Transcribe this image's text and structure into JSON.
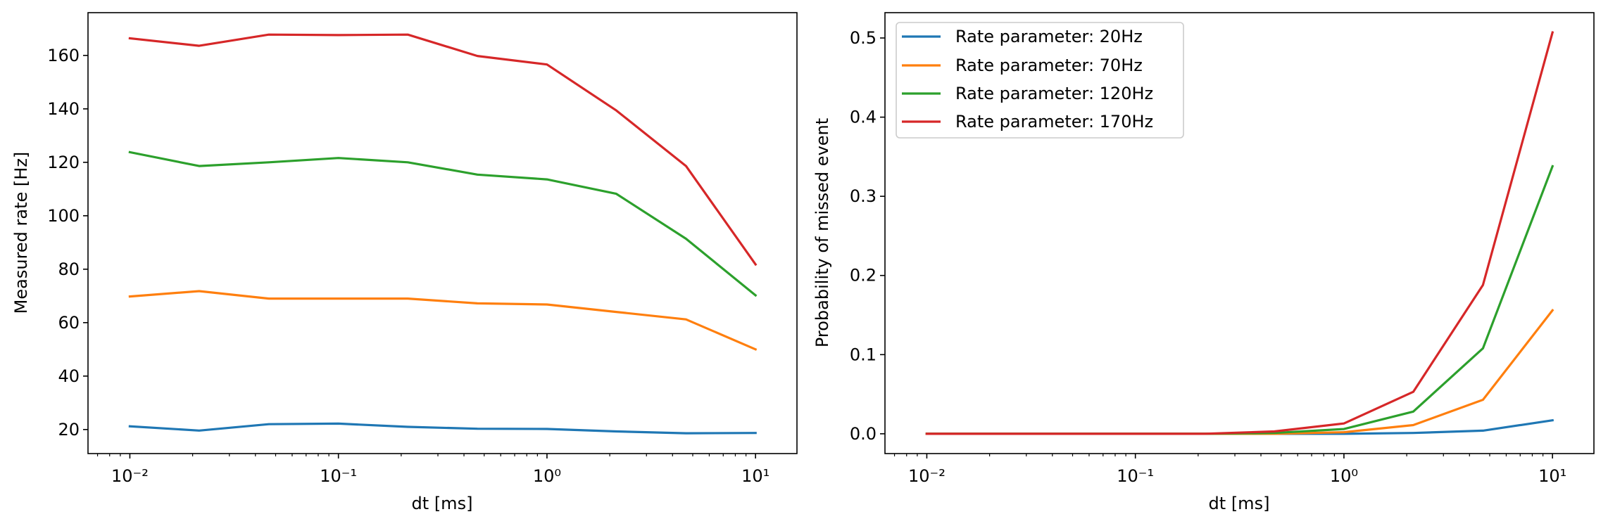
{
  "colors": {
    "series": [
      "#1f77b4",
      "#ff7f0e",
      "#2ca02c",
      "#d62728"
    ],
    "axes": "#000000",
    "legend_border": "#cccccc"
  },
  "chart_data": [
    {
      "type": "line",
      "xlabel": "dt [ms]",
      "ylabel": "Measured rate [Hz]",
      "xscale": "log",
      "xlim": [
        0.0063,
        15.8
      ],
      "ylim": [
        11,
        176
      ],
      "x_ticks": [
        0.01,
        0.1,
        1,
        10
      ],
      "x_tick_labels": [
        "10⁻²",
        "10⁻¹",
        "10⁰",
        "10¹"
      ],
      "y_ticks": [
        20,
        40,
        60,
        80,
        100,
        120,
        140,
        160
      ],
      "y_tick_labels": [
        "20",
        "40",
        "60",
        "80",
        "100",
        "120",
        "140",
        "160"
      ],
      "grid": false,
      "legend": null,
      "x": [
        0.01,
        0.0215,
        0.0464,
        0.1,
        0.215,
        0.464,
        1.0,
        2.15,
        4.64,
        10.0
      ],
      "series": [
        {
          "values": [
            21.2,
            19.6,
            22.0,
            22.2,
            21.0,
            20.3,
            20.2,
            19.3,
            18.6,
            18.7
          ]
        },
        {
          "values": [
            69.8,
            71.8,
            69.0,
            69.0,
            69.0,
            67.2,
            66.8,
            64.0,
            61.2,
            50.0
          ]
        },
        {
          "values": [
            123.8,
            118.6,
            120.0,
            121.6,
            120.0,
            115.4,
            113.6,
            108.2,
            91.4,
            70.2
          ]
        },
        {
          "values": [
            166.4,
            163.6,
            167.8,
            167.6,
            167.8,
            159.8,
            156.6,
            139.4,
            118.6,
            81.8
          ]
        }
      ]
    },
    {
      "type": "line",
      "xlabel": "dt [ms]",
      "ylabel": "Probability of missed event",
      "xscale": "log",
      "xlim": [
        0.0063,
        15.8
      ],
      "ylim": [
        -0.025,
        0.532
      ],
      "x_ticks": [
        0.01,
        0.1,
        1,
        10
      ],
      "x_tick_labels": [
        "10⁻²",
        "10⁻¹",
        "10⁰",
        "10¹"
      ],
      "y_ticks": [
        0.0,
        0.1,
        0.2,
        0.3,
        0.4,
        0.5
      ],
      "y_tick_labels": [
        "0.0",
        "0.1",
        "0.2",
        "0.3",
        "0.4",
        "0.5"
      ],
      "grid": false,
      "legend": "upper-left",
      "x": [
        0.01,
        0.0215,
        0.0464,
        0.1,
        0.215,
        0.464,
        1.0,
        2.15,
        4.64,
        10.0
      ],
      "series": [
        {
          "name": "Rate parameter: 20Hz",
          "values": [
            0.0,
            0.0,
            0.0,
            0.0,
            0.0,
            0.0,
            0.0,
            0.001,
            0.004,
            0.017
          ]
        },
        {
          "name": "Rate parameter: 70Hz",
          "values": [
            0.0,
            0.0,
            0.0,
            0.0,
            0.0,
            0.0,
            0.002,
            0.011,
            0.043,
            0.156
          ]
        },
        {
          "name": "Rate parameter: 120Hz",
          "values": [
            0.0,
            0.0,
            0.0,
            0.0,
            0.0,
            0.001,
            0.006,
            0.028,
            0.108,
            0.338
          ]
        },
        {
          "name": "Rate parameter: 170Hz",
          "values": [
            0.0,
            0.0,
            0.0,
            0.0,
            0.0,
            0.003,
            0.013,
            0.053,
            0.188,
            0.507
          ]
        }
      ]
    }
  ]
}
